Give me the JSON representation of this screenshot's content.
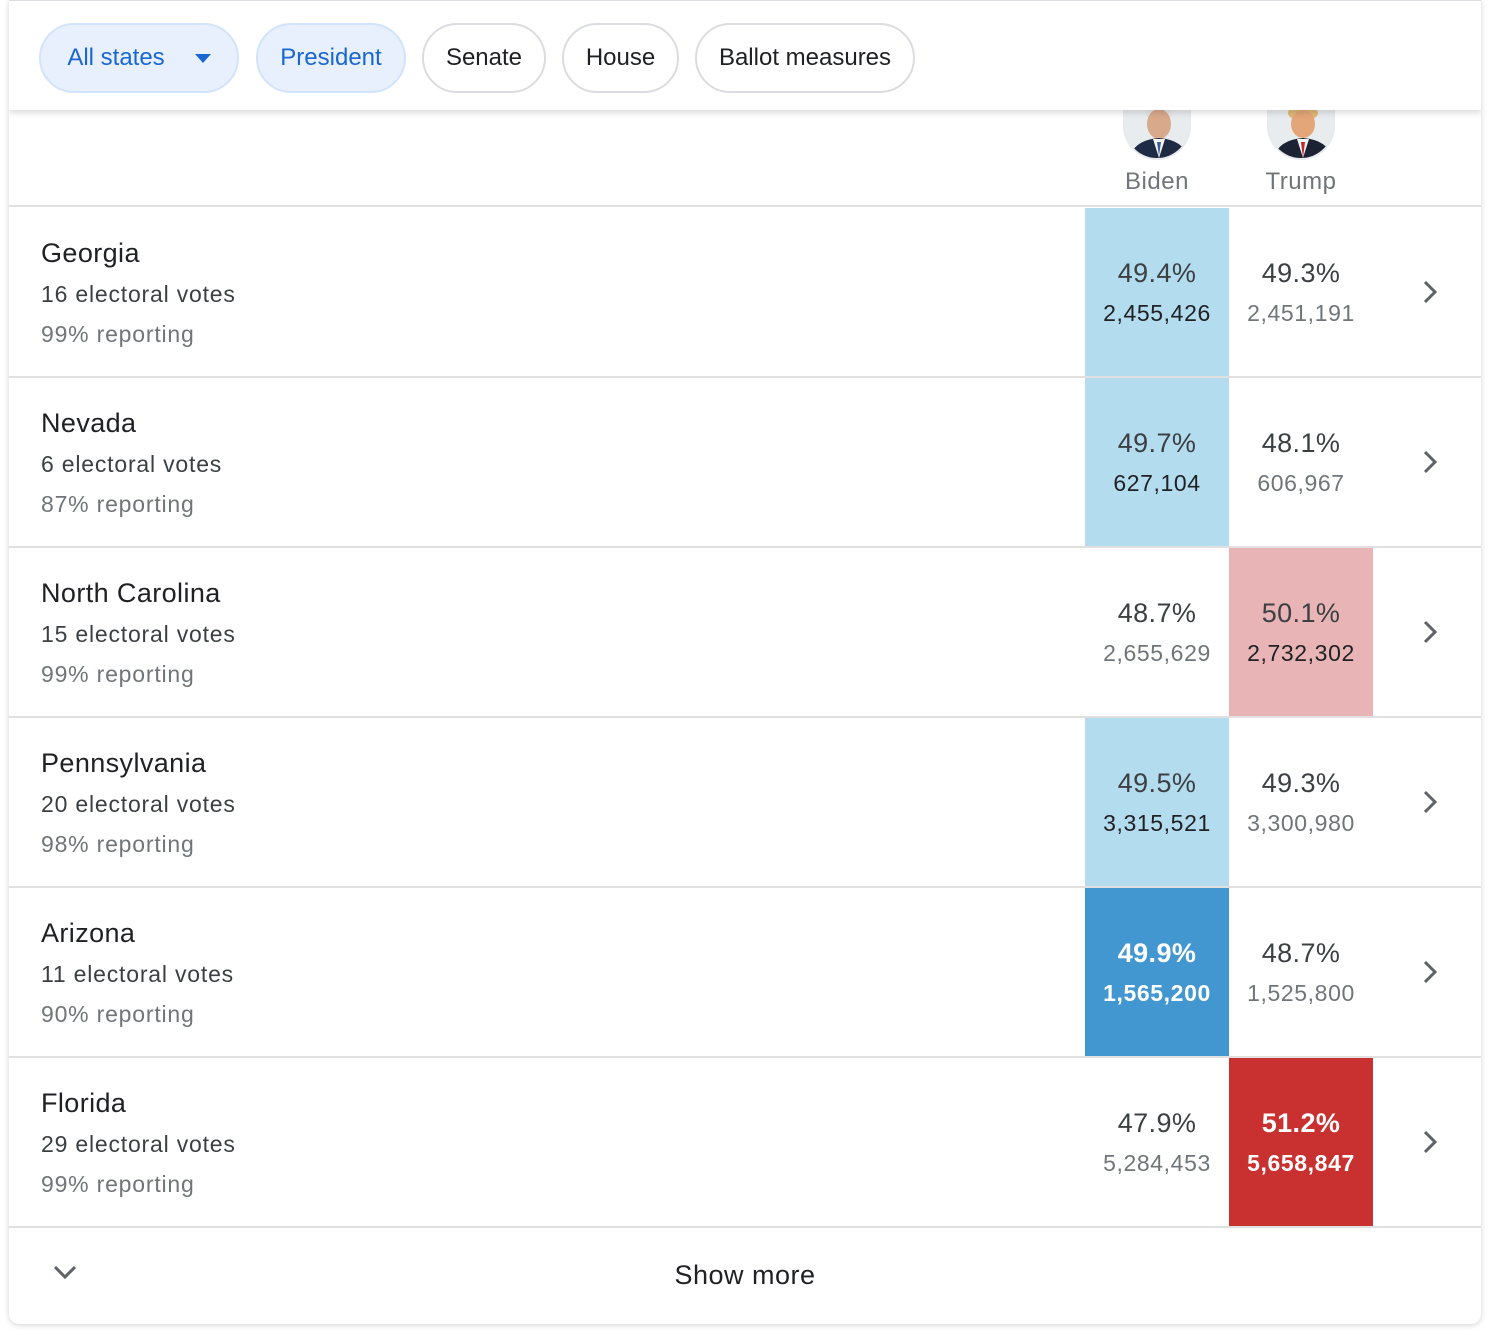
{
  "filters": [
    {
      "label": "All states",
      "selected": true,
      "has_dropdown": true
    },
    {
      "label": "President",
      "selected": true
    },
    {
      "label": "Senate",
      "selected": false
    },
    {
      "label": "House",
      "selected": false
    },
    {
      "label": "Ballot measures",
      "selected": false
    }
  ],
  "candidates": [
    {
      "name": "Biden",
      "color": "#1a73e8"
    },
    {
      "name": "Trump",
      "color": "#d93025"
    }
  ],
  "colors": {
    "dem_light": "#b3dcee",
    "dem_strong": "#4297d1",
    "rep_light": "#e8b4b6",
    "rep_strong": "#c8312f"
  },
  "rows": [
    {
      "state": "Georgia",
      "electoral": "16 electoral votes",
      "reporting": "99% reporting",
      "biden_pct": "49.4%",
      "biden_votes": "2,455,426",
      "trump_pct": "49.3%",
      "trump_votes": "2,451,191",
      "leader": "biden",
      "call": "leading"
    },
    {
      "state": "Nevada",
      "electoral": "6 electoral votes",
      "reporting": "87% reporting",
      "biden_pct": "49.7%",
      "biden_votes": "627,104",
      "trump_pct": "48.1%",
      "trump_votes": "606,967",
      "leader": "biden",
      "call": "leading"
    },
    {
      "state": "North Carolina",
      "electoral": "15 electoral votes",
      "reporting": "99% reporting",
      "biden_pct": "48.7%",
      "biden_votes": "2,655,629",
      "trump_pct": "50.1%",
      "trump_votes": "2,732,302",
      "leader": "trump",
      "call": "leading"
    },
    {
      "state": "Pennsylvania",
      "electoral": "20 electoral votes",
      "reporting": "98% reporting",
      "biden_pct": "49.5%",
      "biden_votes": "3,315,521",
      "trump_pct": "49.3%",
      "trump_votes": "3,300,980",
      "leader": "biden",
      "call": "leading"
    },
    {
      "state": "Arizona",
      "electoral": "11 electoral votes",
      "reporting": "90% reporting",
      "biden_pct": "49.9%",
      "biden_votes": "1,565,200",
      "trump_pct": "48.7%",
      "trump_votes": "1,525,800",
      "leader": "biden",
      "call": "called"
    },
    {
      "state": "Florida",
      "electoral": "29 electoral votes",
      "reporting": "99% reporting",
      "biden_pct": "47.9%",
      "biden_votes": "5,284,453",
      "trump_pct": "51.2%",
      "trump_votes": "5,658,847",
      "leader": "trump",
      "call": "called"
    }
  ],
  "footer": {
    "show_more_label": "Show more"
  }
}
